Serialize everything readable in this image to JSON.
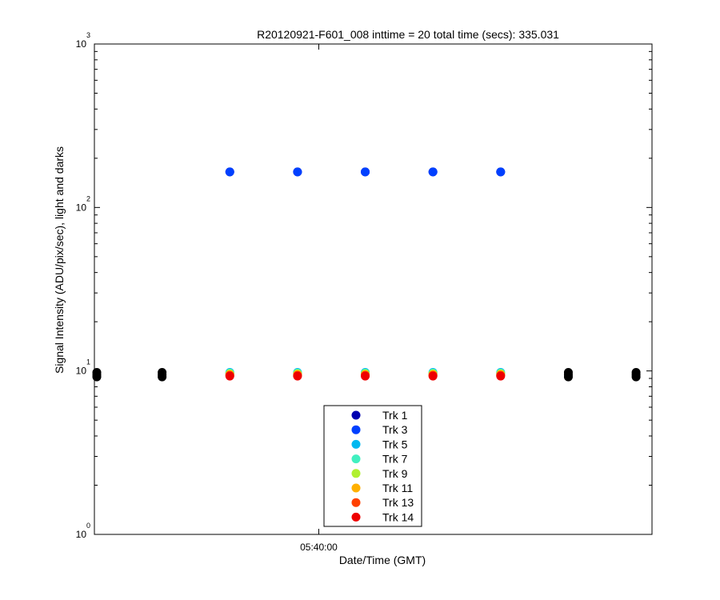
{
  "chart_data": {
    "type": "scatter",
    "title": "R20120921-F601_008 inttime = 20 total time (secs): 335.031",
    "xlabel": "Date/Time (GMT)",
    "ylabel": "Signal Intensity (ADU/pix/sec), light and darks",
    "yscale": "log",
    "ylim": [
      1,
      1000
    ],
    "y_ticks": [
      {
        "base": "10",
        "exp": "0",
        "value": 1
      },
      {
        "base": "10",
        "exp": "1",
        "value": 10
      },
      {
        "base": "10",
        "exp": "2",
        "value": 100
      },
      {
        "base": "10",
        "exp": "3",
        "value": 1000
      }
    ],
    "x_ticks": [
      {
        "label": "05:40:00",
        "value": 3.38
      }
    ],
    "xlim": [
      0,
      8.4
    ],
    "grid": false,
    "legend_position": "bottom-center",
    "series": [
      {
        "name": "Trk 1",
        "color": "#0000b0",
        "x": [
          2.04,
          3.06,
          4.08,
          5.1,
          6.12
        ],
        "y": [
          165,
          165,
          165,
          165,
          165
        ]
      },
      {
        "name": "Trk 3",
        "color": "#0040ff",
        "x": [
          2.04,
          3.06,
          4.08,
          5.1,
          6.12
        ],
        "y": [
          165,
          165,
          165,
          165,
          165
        ]
      },
      {
        "name": "Trk 5",
        "color": "#00b8f0",
        "x": [
          2.04,
          3.06,
          4.08,
          5.1,
          6.12
        ],
        "y": [
          9.8,
          9.8,
          9.8,
          9.8,
          9.8
        ]
      },
      {
        "name": "Trk 7",
        "color": "#40f0c0",
        "x": [
          2.04,
          3.06,
          4.08,
          5.1,
          6.12
        ],
        "y": [
          9.7,
          9.7,
          9.7,
          9.7,
          9.7
        ]
      },
      {
        "name": "Trk 9",
        "color": "#b0f030",
        "x": [
          2.04,
          3.06,
          4.08,
          5.1,
          6.12
        ],
        "y": [
          9.6,
          9.6,
          9.6,
          9.6,
          9.6
        ]
      },
      {
        "name": "Trk 11",
        "color": "#ffb000",
        "x": [
          2.04,
          3.06,
          4.08,
          5.1,
          6.12
        ],
        "y": [
          9.5,
          9.5,
          9.5,
          9.5,
          9.5
        ]
      },
      {
        "name": "Trk 13",
        "color": "#ff4000",
        "x": [
          2.04,
          3.06,
          4.08,
          5.1,
          6.12
        ],
        "y": [
          9.4,
          9.4,
          9.4,
          9.4,
          9.4
        ]
      },
      {
        "name": "Trk 14",
        "color": "#ee0000",
        "x": [
          2.04,
          3.06,
          4.08,
          5.1,
          6.12
        ],
        "y": [
          9.3,
          9.3,
          9.3,
          9.3,
          9.3
        ]
      }
    ],
    "darks": {
      "color": "#000000",
      "x": [
        0,
        0,
        0,
        1.02,
        1.02,
        1.02,
        7.14,
        7.14,
        7.14,
        8.16,
        8.16,
        8.16
      ],
      "y": [
        9.2,
        9.5,
        9.8,
        9.2,
        9.5,
        9.8,
        9.2,
        9.5,
        9.8,
        9.2,
        9.5,
        9.8
      ]
    }
  }
}
